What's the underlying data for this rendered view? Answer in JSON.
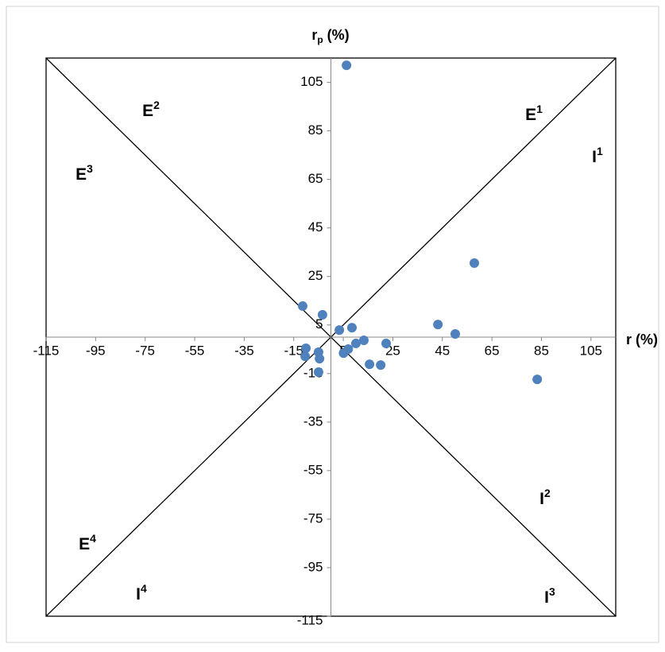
{
  "chart_data": {
    "type": "scatter",
    "x_label": "r (%)",
    "y_label": [
      "r",
      "p",
      " (%)"
    ],
    "xlim": [
      -115,
      115
    ],
    "ylim": [
      -115,
      115
    ],
    "xticks": [
      -115,
      -95,
      -75,
      -55,
      -35,
      -15,
      5,
      25,
      45,
      65,
      85,
      105
    ],
    "yticks": [
      -115,
      -95,
      -75,
      -55,
      -35,
      -15,
      5,
      25,
      45,
      65,
      85,
      105
    ],
    "color": "#4f81bd",
    "x": [
      6.3,
      57.9,
      -11.4,
      -3.4,
      3.4,
      8.5,
      43.2,
      50.2,
      13.3,
      10.1,
      22.3,
      7.0,
      5.1,
      -10.1,
      -5.0,
      -10.4,
      -4.6,
      15.6,
      20.1,
      -5.0,
      83.3
    ],
    "values": [
      112,
      30.5,
      12.8,
      9.2,
      2.9,
      3.9,
      5.2,
      1.3,
      -1.3,
      -2.6,
      -2.6,
      -4.9,
      -6.6,
      -4.6,
      -6.2,
      -7.9,
      -8.9,
      -11.2,
      -11.5,
      -14.4,
      -17.4
    ],
    "annotations": [
      {
        "text": "E",
        "sup": "1"
      },
      {
        "text": "E",
        "sup": "2"
      },
      {
        "text": "E",
        "sup": "3"
      },
      {
        "text": "E",
        "sup": "4"
      },
      {
        "text": "I",
        "sup": "1"
      },
      {
        "text": "I",
        "sup": "2"
      },
      {
        "text": "I",
        "sup": "3"
      },
      {
        "text": "I",
        "sup": "4"
      }
    ]
  }
}
